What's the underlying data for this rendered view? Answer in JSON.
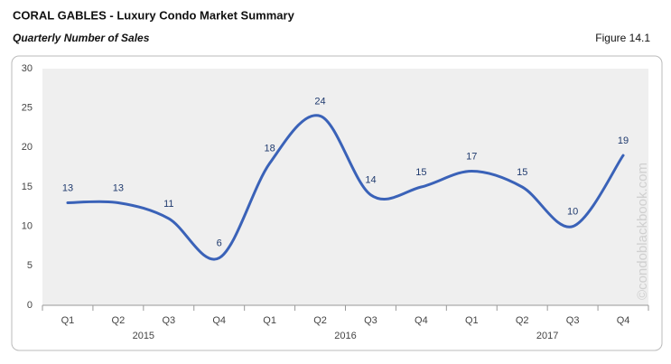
{
  "chart_data": {
    "type": "line",
    "title": "CORAL GABLES - Luxury Condo Market Summary",
    "subtitle": "Quarterly Number of Sales",
    "figure_label": "Figure 14.1",
    "watermark": "©condoblackbook.com",
    "categories": [
      "Q1",
      "Q2",
      "Q3",
      "Q4",
      "Q1",
      "Q2",
      "Q3",
      "Q4",
      "Q1",
      "Q2",
      "Q3",
      "Q4"
    ],
    "category_groups": [
      "2015",
      "2016",
      "2017"
    ],
    "values": [
      13,
      13,
      11,
      6,
      18,
      24,
      14,
      15,
      17,
      15,
      10,
      19
    ],
    "color": "#3a62b8",
    "label_color": "#1f3a6e",
    "ylim": [
      0,
      30
    ],
    "yticks": [
      0,
      5,
      10,
      15,
      20,
      25,
      30
    ],
    "smooth": true,
    "grid": false
  }
}
